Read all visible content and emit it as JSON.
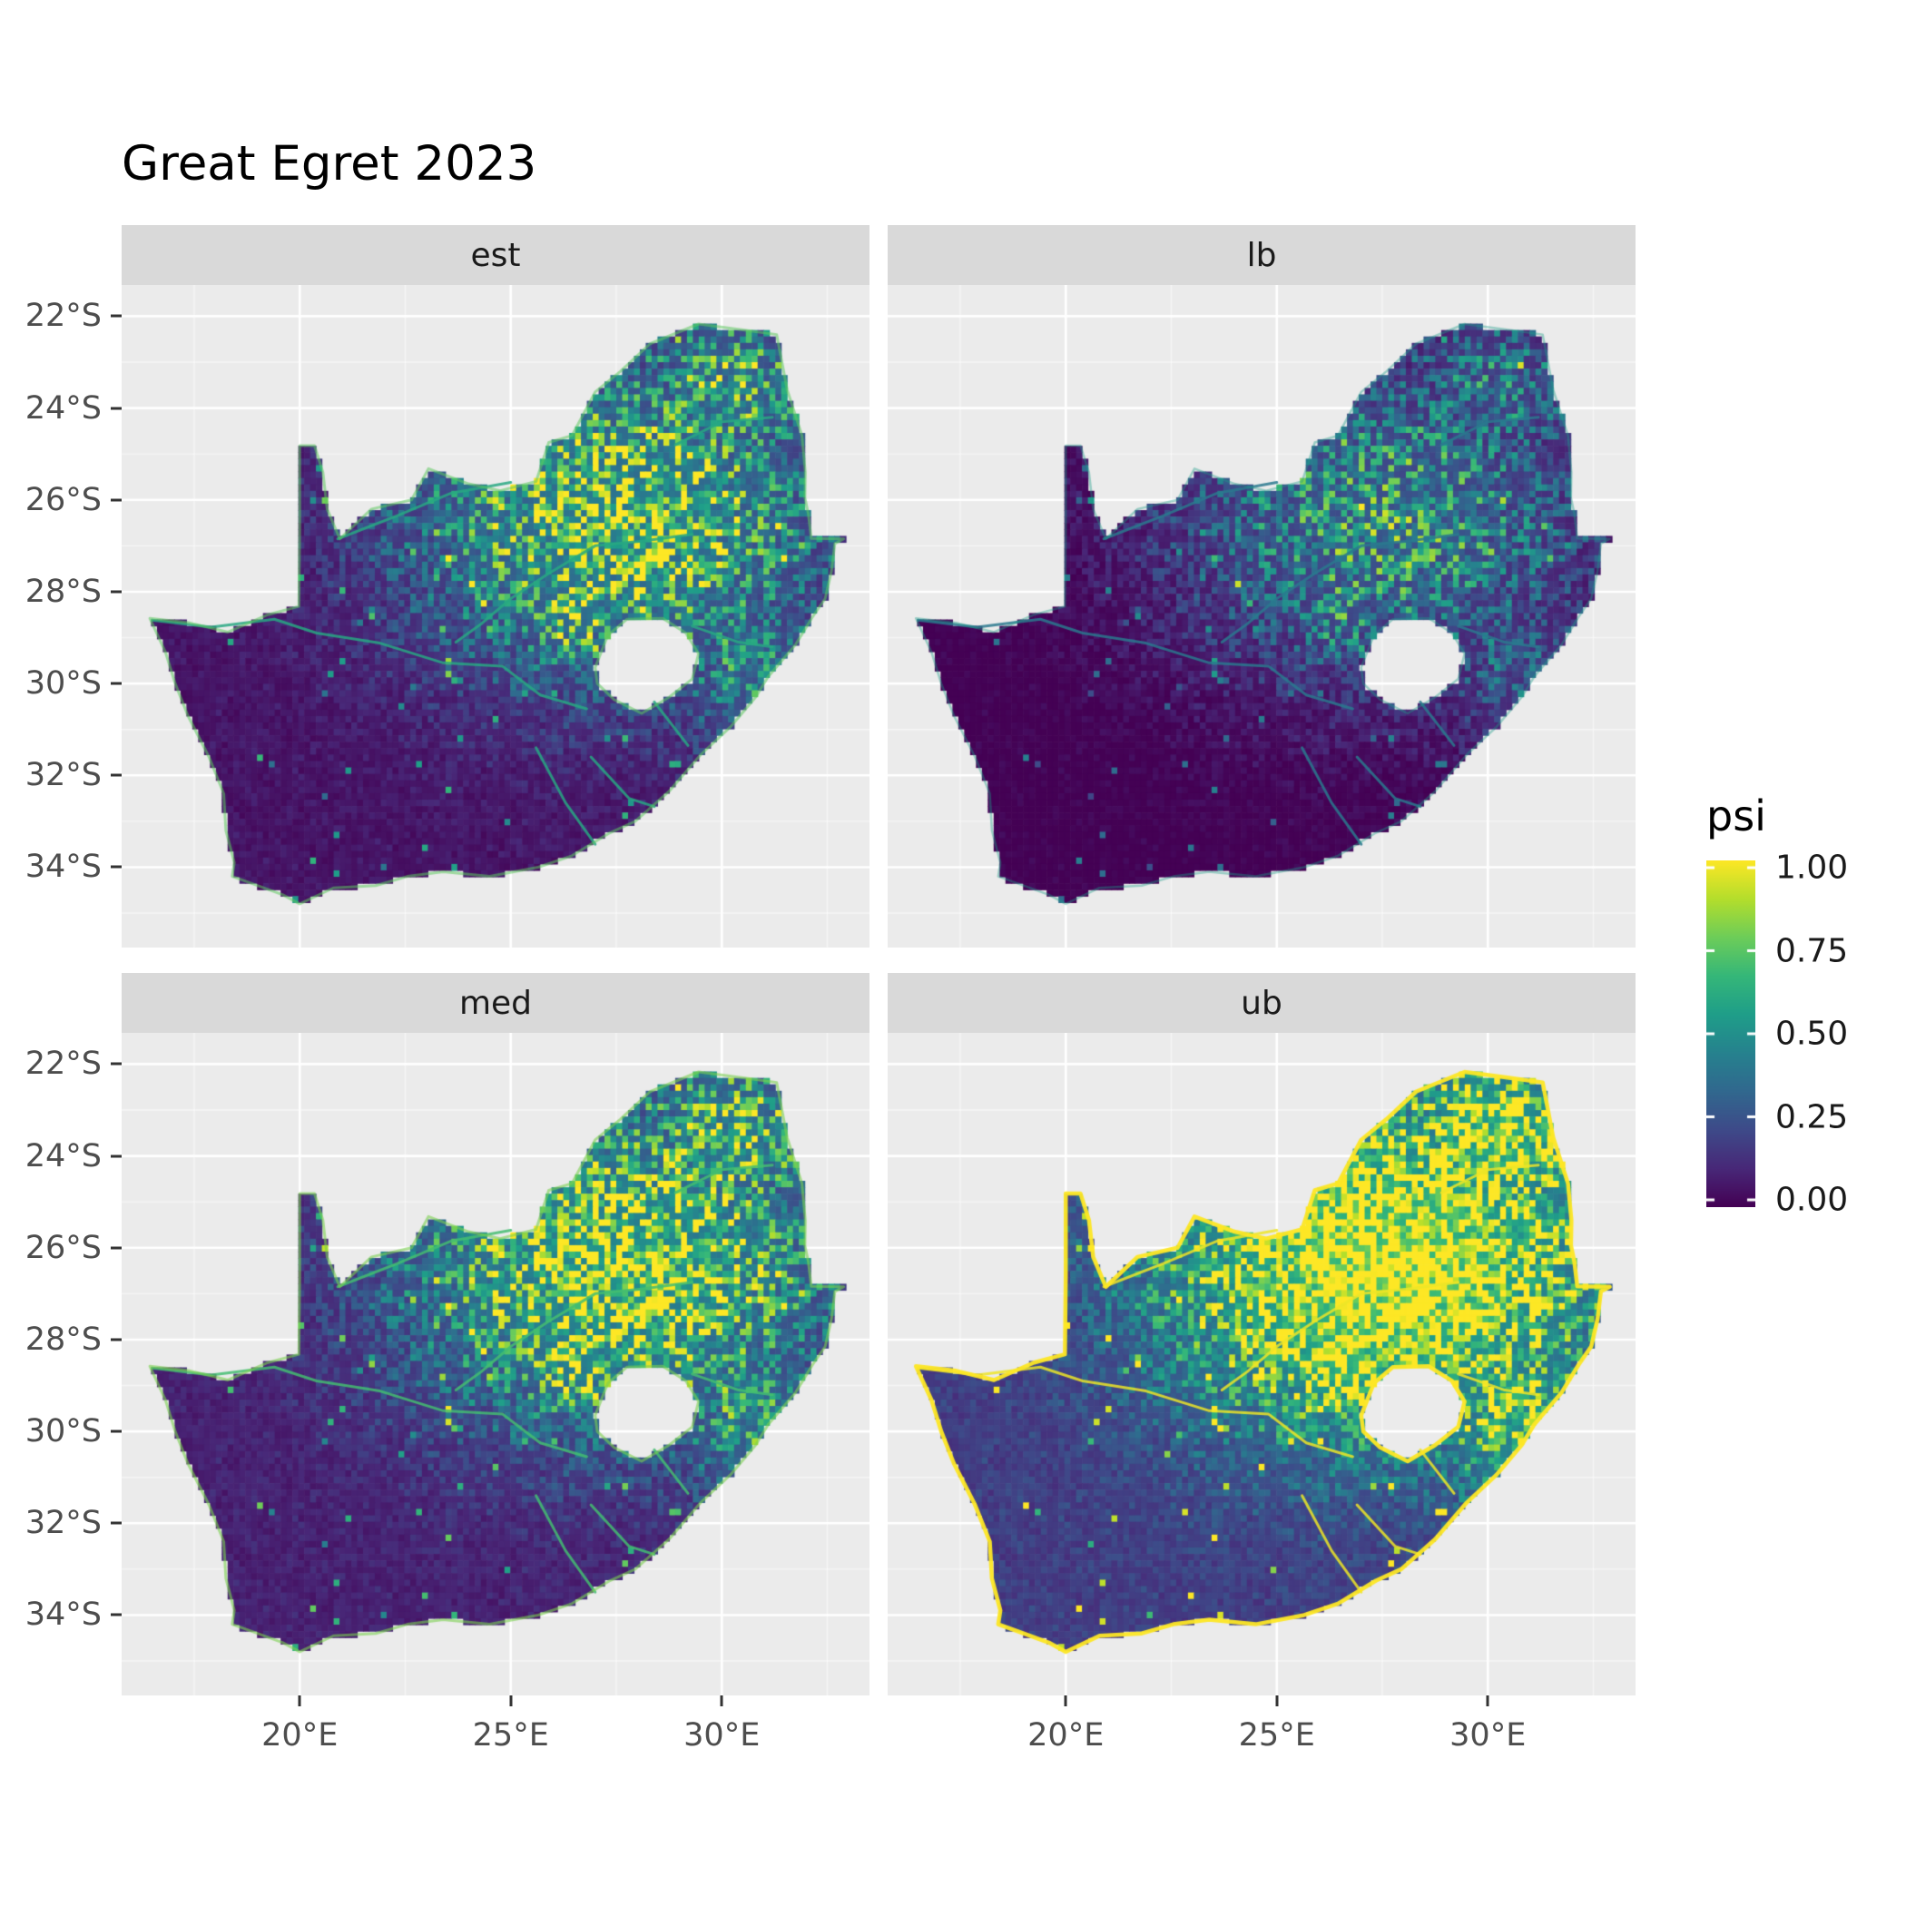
{
  "title": "Great Egret 2023",
  "panel": {
    "bg": "#EBEBEB",
    "grid_major": "#FFFFFF",
    "grid_minor": "rgba(255,255,255,0.55)",
    "strip_bg": "#D9D9D9",
    "strip_text": "#1A1A1A",
    "axis_text": "#4D4D4D",
    "tick_mark": "#333333",
    "title_color": "#000000"
  },
  "chart_data": {
    "type": "heatmap",
    "title": "Great Egret 2023",
    "facets": [
      "est",
      "lb",
      "med",
      "ub"
    ],
    "region": "South Africa occupancy probability raster",
    "x_axis": {
      "range": [
        15.78,
        33.5
      ],
      "ticks": [
        {
          "value": 20,
          "label": "20°E"
        },
        {
          "value": 25,
          "label": "25°E"
        },
        {
          "value": 30,
          "label": "30°E"
        }
      ],
      "minor": [
        17.5,
        22.5,
        27.5,
        32.5
      ]
    },
    "y_axis": {
      "range": [
        -21.32,
        -35.75
      ],
      "ticks": [
        {
          "value": -22,
          "label": "22°S"
        },
        {
          "value": -24,
          "label": "24°S"
        },
        {
          "value": -26,
          "label": "26°S"
        },
        {
          "value": -28,
          "label": "28°S"
        },
        {
          "value": -30,
          "label": "30°S"
        },
        {
          "value": -32,
          "label": "32°S"
        },
        {
          "value": -34,
          "label": "34°S"
        }
      ],
      "minor": [
        -21,
        -23,
        -25,
        -27,
        -29,
        -31,
        -33,
        -35
      ]
    },
    "legend": {
      "title": "psi",
      "ticks": [
        {
          "value": 1.0,
          "label": "1.00"
        },
        {
          "value": 0.75,
          "label": "0.75"
        },
        {
          "value": 0.5,
          "label": "0.50"
        },
        {
          "value": 0.25,
          "label": "0.25"
        },
        {
          "value": 0.0,
          "label": "0.00"
        }
      ]
    },
    "colormap": [
      "#440154",
      "#482878",
      "#3E4A89",
      "#31688E",
      "#26828E",
      "#1F9E89",
      "#35B779",
      "#6DCD59",
      "#B4DE2C",
      "#FDE725"
    ],
    "facet_transform": {
      "est": {
        "gain": 1.0,
        "bias": 0.0,
        "coast": 0.75,
        "coast_alpha": 0.55,
        "coast_w": 3
      },
      "lb": {
        "gain": 0.72,
        "bias": -0.04,
        "coast": 0.55,
        "coast_alpha": 0.4,
        "coast_w": 2.5
      },
      "med": {
        "gain": 1.12,
        "bias": 0.03,
        "coast": 0.8,
        "coast_alpha": 0.6,
        "coast_w": 3
      },
      "ub": {
        "gain": 1.5,
        "bias": 0.1,
        "coast": 1.0,
        "coast_alpha": 0.95,
        "coast_w": 4.5
      }
    },
    "hotspots": [
      {
        "lon": 27.6,
        "lat": -26.4,
        "sx": 4.8,
        "sy": 3.4,
        "amp": 1.0
      },
      {
        "lon": 30.2,
        "lat": -23.6,
        "sx": 2.3,
        "sy": 2.0,
        "amp": 0.75
      },
      {
        "lon": 30.6,
        "lat": -29.5,
        "sx": 1.8,
        "sy": 2.0,
        "amp": 0.6
      },
      {
        "lon": 26.5,
        "lat": -28.3,
        "sx": 1.5,
        "sy": 1.5,
        "amp": 0.9
      }
    ],
    "outline": [
      [
        16.45,
        -28.58
      ],
      [
        16.82,
        -29.32
      ],
      [
        17.05,
        -30.0
      ],
      [
        17.35,
        -30.7
      ],
      [
        17.85,
        -31.6
      ],
      [
        18.2,
        -32.4
      ],
      [
        18.25,
        -33.2
      ],
      [
        18.45,
        -33.9
      ],
      [
        18.4,
        -34.2
      ],
      [
        18.85,
        -34.35
      ],
      [
        19.6,
        -34.6
      ],
      [
        20.0,
        -34.8
      ],
      [
        20.8,
        -34.45
      ],
      [
        21.8,
        -34.4
      ],
      [
        22.55,
        -34.2
      ],
      [
        23.4,
        -34.1
      ],
      [
        24.5,
        -34.2
      ],
      [
        25.65,
        -34.0
      ],
      [
        26.45,
        -33.75
      ],
      [
        27.35,
        -33.25
      ],
      [
        27.95,
        -33.0
      ],
      [
        28.75,
        -32.35
      ],
      [
        29.5,
        -31.55
      ],
      [
        30.2,
        -30.95
      ],
      [
        30.8,
        -30.3
      ],
      [
        31.1,
        -29.85
      ],
      [
        31.75,
        -29.15
      ],
      [
        32.15,
        -28.55
      ],
      [
        32.45,
        -28.15
      ],
      [
        32.6,
        -27.55
      ],
      [
        32.68,
        -26.95
      ],
      [
        32.89,
        -26.85
      ],
      [
        32.12,
        -26.84
      ],
      [
        32.05,
        -26.3
      ],
      [
        31.97,
        -25.95
      ],
      [
        31.98,
        -25.4
      ],
      [
        31.9,
        -24.6
      ],
      [
        31.55,
        -23.6
      ],
      [
        31.3,
        -22.4
      ],
      [
        30.5,
        -22.3
      ],
      [
        29.45,
        -22.17
      ],
      [
        28.3,
        -22.6
      ],
      [
        27.6,
        -23.2
      ],
      [
        27.0,
        -23.65
      ],
      [
        26.45,
        -24.6
      ],
      [
        25.9,
        -24.75
      ],
      [
        25.6,
        -25.6
      ],
      [
        24.75,
        -25.8
      ],
      [
        24.0,
        -25.65
      ],
      [
        23.05,
        -25.32
      ],
      [
        22.65,
        -26.0
      ],
      [
        21.7,
        -26.2
      ],
      [
        20.95,
        -26.85
      ],
      [
        20.65,
        -26.2
      ],
      [
        20.55,
        -25.4
      ],
      [
        20.35,
        -24.82
      ],
      [
        20.0,
        -24.82
      ],
      [
        20.0,
        -26.6
      ],
      [
        19.98,
        -28.32
      ],
      [
        19.25,
        -28.5
      ],
      [
        18.3,
        -28.88
      ],
      [
        17.4,
        -28.68
      ]
    ],
    "lesotho_hole": [
      [
        27.0,
        -29.65
      ],
      [
        27.3,
        -28.95
      ],
      [
        27.75,
        -28.6
      ],
      [
        28.6,
        -28.58
      ],
      [
        29.15,
        -28.9
      ],
      [
        29.45,
        -29.35
      ],
      [
        29.3,
        -29.9
      ],
      [
        28.75,
        -30.3
      ],
      [
        28.1,
        -30.65
      ],
      [
        27.45,
        -30.35
      ],
      [
        27.05,
        -30.0
      ]
    ],
    "rivers": [
      [
        [
          16.5,
          -28.62
        ],
        [
          17.9,
          -28.77
        ],
        [
          19.4,
          -28.6
        ],
        [
          20.4,
          -28.9
        ],
        [
          21.9,
          -29.12
        ],
        [
          23.4,
          -29.55
        ],
        [
          24.8,
          -29.62
        ],
        [
          25.7,
          -30.25
        ],
        [
          26.8,
          -30.55
        ]
      ],
      [
        [
          29.3,
          -26.75
        ],
        [
          28.1,
          -26.9
        ],
        [
          27.0,
          -27.0
        ],
        [
          25.9,
          -27.6
        ],
        [
          25.0,
          -28.15
        ],
        [
          24.3,
          -28.7
        ],
        [
          23.7,
          -29.1
        ]
      ],
      [
        [
          20.9,
          -26.85
        ],
        [
          22.3,
          -26.35
        ],
        [
          23.6,
          -25.85
        ],
        [
          25.0,
          -25.62
        ]
      ],
      [
        [
          25.6,
          -31.4
        ],
        [
          26.3,
          -32.6
        ],
        [
          27.0,
          -33.5
        ]
      ],
      [
        [
          26.9,
          -31.6
        ],
        [
          27.8,
          -32.5
        ],
        [
          28.4,
          -32.68
        ]
      ],
      [
        [
          28.4,
          -30.4
        ],
        [
          29.2,
          -31.35
        ]
      ],
      [
        [
          29.3,
          -28.75
        ],
        [
          30.4,
          -29.1
        ],
        [
          31.2,
          -29.2
        ]
      ],
      [
        [
          28.9,
          -24.8
        ],
        [
          30.0,
          -24.3
        ],
        [
          31.2,
          -24.2
        ]
      ]
    ],
    "grid": {
      "cell_deg": 0.14,
      "noise_seed": 7
    }
  }
}
